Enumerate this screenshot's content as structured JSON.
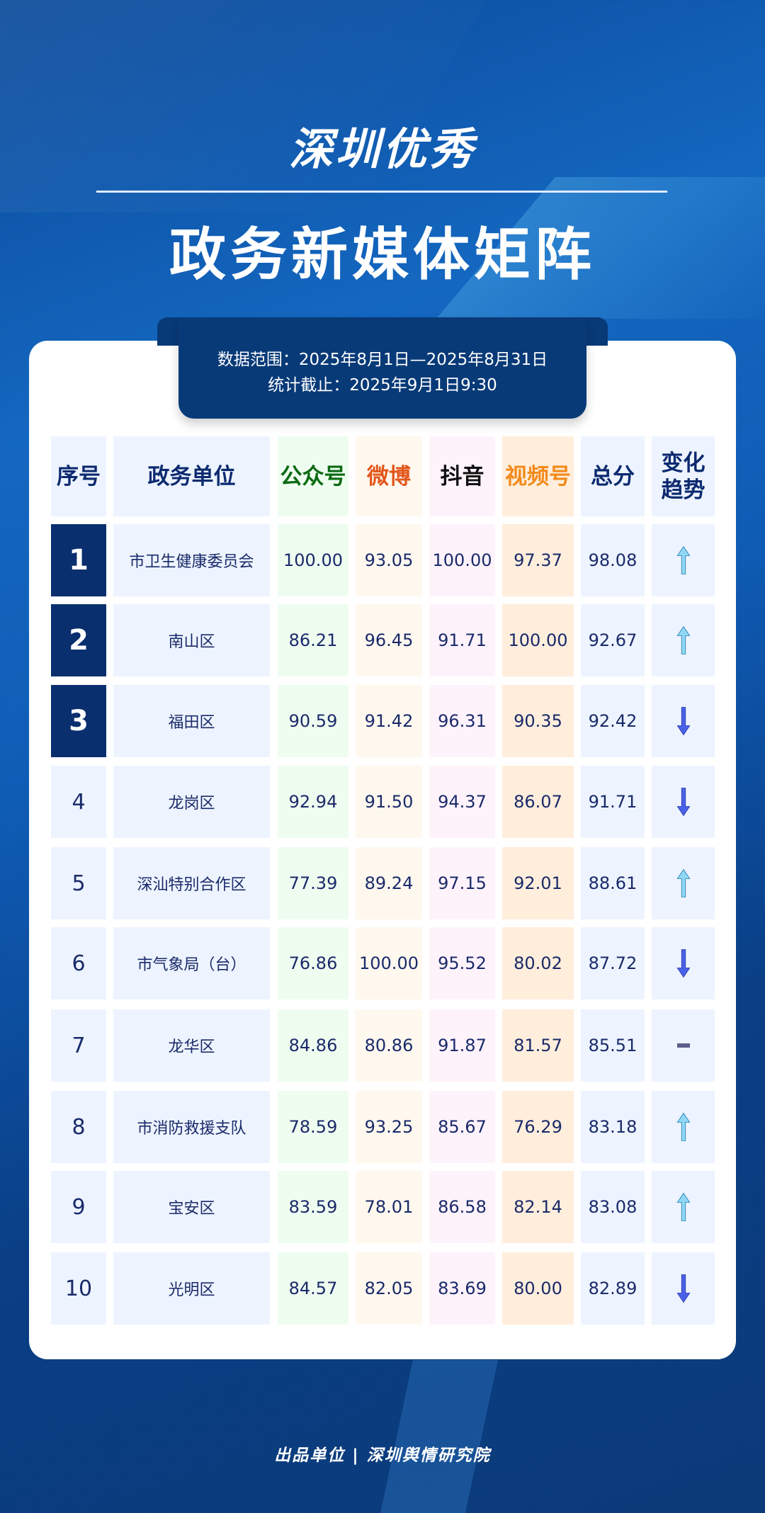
{
  "title_line1": "深圳优秀",
  "title_line2": "政务新媒体矩阵",
  "info": {
    "range": "数据范围：2025年8月1日—2025年8月31日",
    "cutoff": "统计截止：2025年9月1日9:30"
  },
  "headers": [
    "序号",
    "政务单位",
    "公众号",
    "微博",
    "抖音",
    "视频号",
    "总分",
    "变化趋势"
  ],
  "header_colors": [
    "#0d2a70",
    "#0d2a70",
    "#0a6a12",
    "#e2561a",
    "#111111",
    "#f28a1a",
    "#0d2a70",
    "#0d2a70"
  ],
  "column_bg": [
    "#edf4ff",
    "#edf4ff",
    "#effdf0",
    "#fff8ef",
    "#fff3fb",
    "#ffeedc",
    "#edf4ff",
    "#edf4ff"
  ],
  "trend_colors": {
    "up": "#8fd8f5",
    "down": "#4a62e8",
    "flat": "#5a5f8a"
  },
  "rows": [
    {
      "rank": "1",
      "unit": "市卫生健康委员会",
      "gzh": "100.00",
      "wb": "93.05",
      "dy": "100.00",
      "sph": "97.37",
      "total": "98.08",
      "trend": "up"
    },
    {
      "rank": "2",
      "unit": "南山区",
      "gzh": "86.21",
      "wb": "96.45",
      "dy": "91.71",
      "sph": "100.00",
      "total": "92.67",
      "trend": "up"
    },
    {
      "rank": "3",
      "unit": "福田区",
      "gzh": "90.59",
      "wb": "91.42",
      "dy": "96.31",
      "sph": "90.35",
      "total": "92.42",
      "trend": "down"
    },
    {
      "rank": "4",
      "unit": "龙岗区",
      "gzh": "92.94",
      "wb": "91.50",
      "dy": "94.37",
      "sph": "86.07",
      "total": "91.71",
      "trend": "down"
    },
    {
      "rank": "5",
      "unit": "深汕特别合作区",
      "gzh": "77.39",
      "wb": "89.24",
      "dy": "97.15",
      "sph": "92.01",
      "total": "88.61",
      "trend": "up"
    },
    {
      "rank": "6",
      "unit": "市气象局（台）",
      "gzh": "76.86",
      "wb": "100.00",
      "dy": "95.52",
      "sph": "80.02",
      "total": "87.72",
      "trend": "down"
    },
    {
      "rank": "7",
      "unit": "龙华区",
      "gzh": "84.86",
      "wb": "80.86",
      "dy": "91.87",
      "sph": "81.57",
      "total": "85.51",
      "trend": "flat"
    },
    {
      "rank": "8",
      "unit": "市消防救援支队",
      "gzh": "78.59",
      "wb": "93.25",
      "dy": "85.67",
      "sph": "76.29",
      "total": "83.18",
      "trend": "up"
    },
    {
      "rank": "9",
      "unit": "宝安区",
      "gzh": "83.59",
      "wb": "78.01",
      "dy": "86.58",
      "sph": "82.14",
      "total": "83.08",
      "trend": "up"
    },
    {
      "rank": "10",
      "unit": "光明区",
      "gzh": "84.57",
      "wb": "82.05",
      "dy": "83.69",
      "sph": "80.00",
      "total": "82.89",
      "trend": "down"
    }
  ],
  "footer": "出品单位 | 深圳舆情研究院"
}
